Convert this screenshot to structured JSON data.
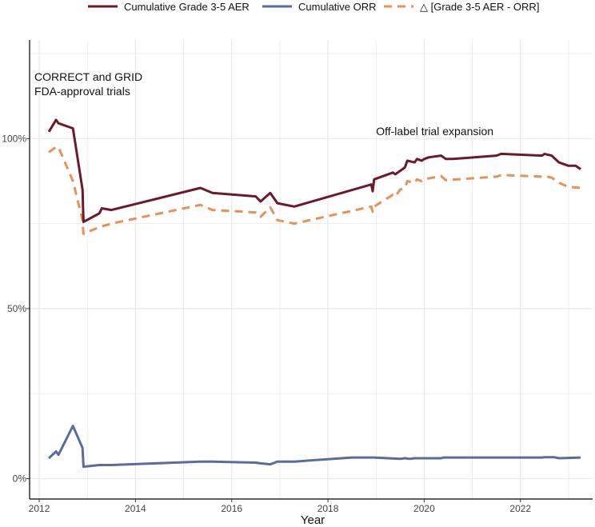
{
  "chart_data": {
    "type": "line",
    "title": "",
    "xlabel": "Year",
    "ylabel": "",
    "xlim": [
      2011.8,
      2023.5
    ],
    "ylim": [
      -0.06,
      1.29
    ],
    "x_ticks": [
      2012,
      2014,
      2016,
      2018,
      2020,
      2022
    ],
    "x_tick_labels": [
      "2012",
      "2014",
      "2016",
      "2018",
      "2020",
      "2022"
    ],
    "y_ticks": [
      0,
      0.5,
      1
    ],
    "y_tick_labels": [
      "0%",
      "50%",
      "100%"
    ],
    "grid": true,
    "legend_position": "top",
    "annotations": [
      {
        "text_lines": [
          "CORRECT and GRID",
          "FDA-approval trials"
        ],
        "x": 2011.9,
        "y": 1.17
      },
      {
        "text_lines": [
          "Off-label trial expansion"
        ],
        "x": 2019.0,
        "y": 1.01
      }
    ],
    "series": [
      {
        "name": "Cumulative Grade 3-5 AER",
        "color": "#6b1a2a",
        "dash": "solid",
        "x": [
          2012.2,
          2012.35,
          2012.4,
          2012.7,
          2012.9,
          2012.92,
          2013.25,
          2013.3,
          2013.5,
          2015.35,
          2015.6,
          2016.5,
          2016.6,
          2016.8,
          2016.95,
          2017.3,
          2018.9,
          2018.93,
          2018.96,
          2019.35,
          2019.4,
          2019.5,
          2019.6,
          2019.65,
          2019.8,
          2019.85,
          2019.95,
          2020.0,
          2020.1,
          2020.35,
          2020.45,
          2020.6,
          2021.5,
          2021.6,
          2022.45,
          2022.5,
          2022.65,
          2022.8,
          2023.0,
          2023.15,
          2023.25
        ],
        "values": [
          1.02,
          1.055,
          1.045,
          1.03,
          0.85,
          0.755,
          0.78,
          0.795,
          0.79,
          0.855,
          0.84,
          0.83,
          0.815,
          0.84,
          0.81,
          0.8,
          0.865,
          0.845,
          0.88,
          0.9,
          0.895,
          0.905,
          0.915,
          0.935,
          0.93,
          0.94,
          0.935,
          0.94,
          0.945,
          0.95,
          0.94,
          0.94,
          0.95,
          0.955,
          0.95,
          0.955,
          0.95,
          0.93,
          0.92,
          0.92,
          0.91
        ]
      },
      {
        "name": "Cumulative ORR",
        "color": "#5a6d9a",
        "dash": "solid",
        "x": [
          2012.2,
          2012.35,
          2012.4,
          2012.7,
          2012.9,
          2012.92,
          2013.25,
          2013.5,
          2015.35,
          2015.6,
          2016.5,
          2016.6,
          2016.8,
          2016.95,
          2017.3,
          2018.5,
          2018.95,
          2019.5,
          2019.6,
          2019.7,
          2019.8,
          2020.35,
          2020.4,
          2021.5,
          2022.45,
          2022.5,
          2022.7,
          2022.8,
          2023.25
        ],
        "values": [
          0.06,
          0.08,
          0.07,
          0.155,
          0.09,
          0.035,
          0.04,
          0.04,
          0.05,
          0.05,
          0.047,
          0.045,
          0.042,
          0.05,
          0.05,
          0.062,
          0.062,
          0.058,
          0.06,
          0.058,
          0.06,
          0.06,
          0.062,
          0.062,
          0.062,
          0.063,
          0.063,
          0.06,
          0.062
        ]
      },
      {
        "name": "△ [Grade 3-5 AER - ORR]",
        "color": "#e3925a",
        "dash": "dashed",
        "x": [
          2012.2,
          2012.35,
          2012.4,
          2012.7,
          2012.9,
          2012.92,
          2013.25,
          2013.5,
          2015.35,
          2015.6,
          2016.5,
          2016.6,
          2016.8,
          2016.95,
          2017.3,
          2018.9,
          2018.93,
          2018.96,
          2019.35,
          2019.4,
          2019.5,
          2019.6,
          2019.65,
          2019.8,
          2019.85,
          2019.95,
          2020.0,
          2020.35,
          2020.45,
          2021.5,
          2021.6,
          2022.45,
          2022.5,
          2022.65,
          2022.8,
          2023.0,
          2023.25
        ],
        "values": [
          0.96,
          0.975,
          0.975,
          0.875,
          0.76,
          0.72,
          0.74,
          0.75,
          0.805,
          0.79,
          0.783,
          0.77,
          0.798,
          0.76,
          0.75,
          0.8,
          0.785,
          0.8,
          0.835,
          0.83,
          0.85,
          0.855,
          0.875,
          0.87,
          0.88,
          0.875,
          0.88,
          0.89,
          0.878,
          0.888,
          0.893,
          0.888,
          0.89,
          0.885,
          0.87,
          0.858,
          0.855
        ]
      }
    ]
  }
}
